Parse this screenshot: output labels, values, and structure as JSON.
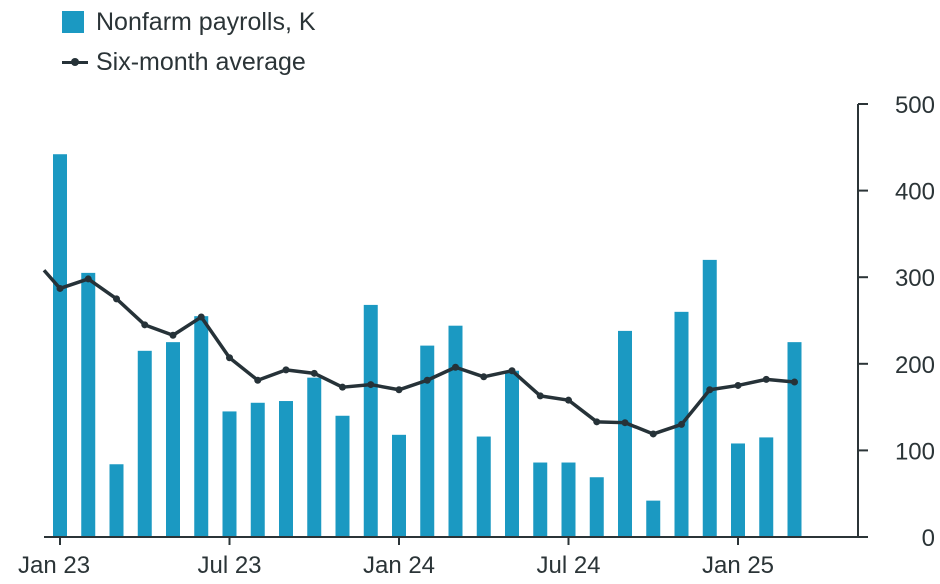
{
  "chart_data": {
    "type": "bar",
    "x": [
      "Jan 23",
      "Feb 23",
      "Mar 23",
      "Apr 23",
      "May 23",
      "Jun 23",
      "Jul 23",
      "Aug 23",
      "Sep 23",
      "Oct 23",
      "Nov 23",
      "Dec 23",
      "Jan 24",
      "Feb 24",
      "Mar 24",
      "Apr 24",
      "May 24",
      "Jun 24",
      "Jul 24",
      "Aug 24",
      "Sep 24",
      "Oct 24",
      "Nov 24",
      "Dec 24",
      "Jan 25",
      "Feb 25",
      "Mar 25"
    ],
    "x_tick_labels": [
      "Jan 23",
      "Jul 23",
      "Jan 24",
      "Jul 24",
      "Jan 25"
    ],
    "series": [
      {
        "name": "Nonfarm payrolls, K",
        "type": "bar",
        "color": "#1b99c2",
        "values": [
          442,
          305,
          84,
          215,
          225,
          255,
          145,
          155,
          157,
          184,
          140,
          268,
          118,
          221,
          244,
          116,
          192,
          86,
          86,
          69,
          238,
          42,
          260,
          320,
          108,
          115,
          225
        ]
      },
      {
        "name": "Six-month average",
        "type": "line",
        "color": "#263238",
        "values": [
          287,
          298,
          275,
          245,
          233,
          254,
          207,
          181,
          193,
          189,
          173,
          176,
          170,
          181,
          196,
          185,
          192,
          163,
          158,
          133,
          132,
          119,
          130,
          170,
          175,
          182,
          179
        ],
        "line_starts_off_left": 308
      }
    ],
    "y_axis": {
      "position": "right",
      "ylim": [
        0,
        500
      ],
      "ticks": [
        0,
        100,
        200,
        300,
        400,
        500
      ]
    },
    "grid": false,
    "legend": "top-left"
  }
}
